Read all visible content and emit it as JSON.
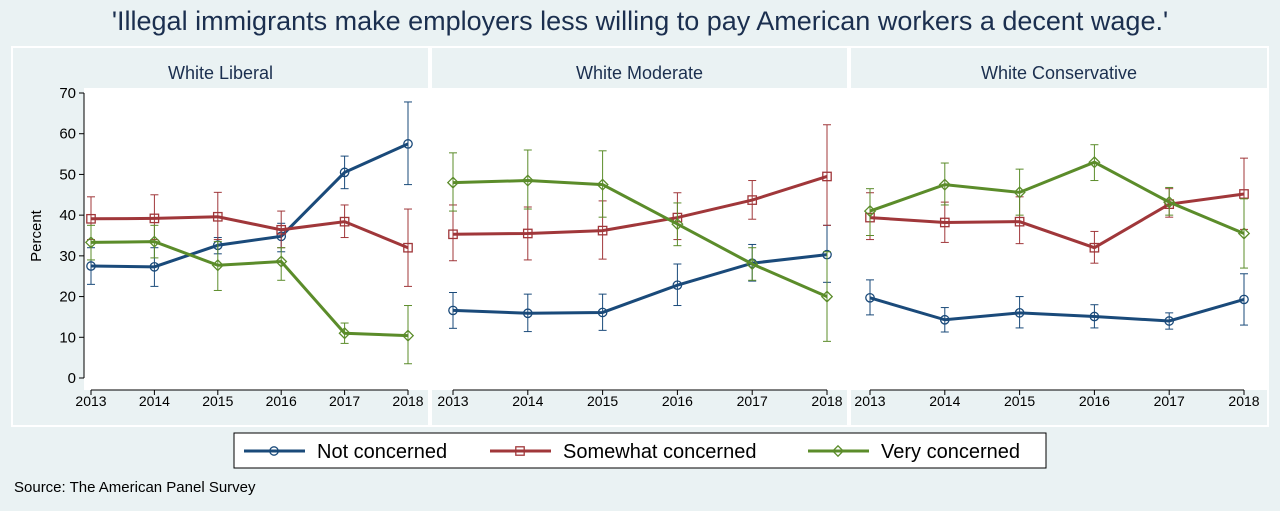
{
  "title": "'Illegal immigrants make employers less willing to pay American workers a decent wage.'",
  "source": "Source: The American Panel Survey",
  "colors": {
    "not_concerned": "#1a4a7a",
    "somewhat_concerned": "#a0373a",
    "very_concerned": "#5b8c2a",
    "background": "#eaf2f3",
    "plot_background": "#ffffff"
  },
  "legend": {
    "position": "bottom",
    "items": [
      {
        "label": "Not concerned",
        "marker": "circle",
        "color": "#1a4a7a"
      },
      {
        "label": "Somewhat concerned",
        "marker": "square",
        "color": "#a0373a"
      },
      {
        "label": "Very concerned",
        "marker": "diamond",
        "color": "#5b8c2a"
      }
    ]
  },
  "chart_data": [
    {
      "type": "line",
      "title": "White Liberal",
      "ylabel": "Percent",
      "xlabel": "",
      "x": [
        2013,
        2014,
        2015,
        2016,
        2017,
        2018
      ],
      "ylim": [
        0,
        70
      ],
      "yticks": [
        0,
        10,
        20,
        30,
        40,
        50,
        60,
        70
      ],
      "grid": false,
      "series": [
        {
          "name": "Not concerned",
          "values": [
            27.5,
            27.3,
            32.6,
            34.8,
            50.5,
            57.5
          ],
          "ci_low": [
            23,
            22.5,
            30.5,
            31,
            46.5,
            47.5
          ],
          "ci_high": [
            32,
            32,
            34.5,
            38,
            54.5,
            67.8
          ]
        },
        {
          "name": "Somewhat concerned",
          "values": [
            39.1,
            39.2,
            39.6,
            36.4,
            38.4,
            32
          ],
          "ci_low": [
            34,
            34,
            34,
            32,
            34.5,
            22.5
          ],
          "ci_high": [
            44.5,
            45,
            45.6,
            41,
            42.5,
            41.5
          ]
        },
        {
          "name": "Very concerned",
          "values": [
            33.3,
            33.5,
            27.7,
            28.6,
            11,
            10.4
          ],
          "ci_low": [
            29,
            29.5,
            21.5,
            24,
            8.5,
            3.5
          ],
          "ci_high": [
            37.5,
            37.5,
            33.5,
            32,
            13.5,
            17.8
          ]
        }
      ]
    },
    {
      "type": "line",
      "title": "White Moderate",
      "ylabel": "",
      "xlabel": "",
      "x": [
        2013,
        2014,
        2015,
        2016,
        2017,
        2018
      ],
      "ylim": [
        0,
        70
      ],
      "yticks": [],
      "grid": false,
      "series": [
        {
          "name": "Not concerned",
          "values": [
            16.6,
            15.9,
            16.1,
            22.8,
            28.2,
            30.3
          ],
          "ci_low": [
            12.2,
            11.4,
            11.7,
            17.8,
            23.8,
            23.5
          ],
          "ci_high": [
            21,
            20.6,
            20.6,
            28,
            32.8,
            37.5
          ]
        },
        {
          "name": "Somewhat concerned",
          "values": [
            35.3,
            35.5,
            36.2,
            39.4,
            43.7,
            49.5
          ],
          "ci_low": [
            28.8,
            29,
            29.2,
            34,
            39,
            37.5
          ],
          "ci_high": [
            42.5,
            42,
            43.5,
            45.5,
            48.5,
            62.2
          ]
        },
        {
          "name": "Very concerned",
          "values": [
            48,
            48.5,
            47.5,
            37.8,
            28,
            20
          ],
          "ci_low": [
            41,
            41.5,
            39.5,
            32.5,
            24,
            9
          ],
          "ci_high": [
            55.3,
            56,
            55.8,
            43,
            32,
            31
          ]
        }
      ]
    },
    {
      "type": "line",
      "title": "White Conservative",
      "ylabel": "",
      "xlabel": "",
      "x": [
        2013,
        2014,
        2015,
        2016,
        2017,
        2018
      ],
      "ylim": [
        0,
        70
      ],
      "yticks": [],
      "grid": false,
      "series": [
        {
          "name": "Not concerned",
          "values": [
            19.7,
            14.3,
            16,
            15.1,
            14,
            19.3
          ],
          "ci_low": [
            15.5,
            11.3,
            12.3,
            12.3,
            12,
            13
          ],
          "ci_high": [
            24.1,
            17.3,
            20,
            18,
            16,
            25.6
          ]
        },
        {
          "name": "Somewhat concerned",
          "values": [
            39.4,
            38.2,
            38.4,
            32,
            42.7,
            45.2
          ],
          "ci_low": [
            34,
            33.3,
            33,
            28.2,
            39.5,
            36.5
          ],
          "ci_high": [
            45.5,
            43.2,
            44.5,
            36,
            46.5,
            54
          ]
        },
        {
          "name": "Very concerned",
          "values": [
            41,
            47.5,
            45.6,
            53,
            43.2,
            35.5
          ],
          "ci_low": [
            35,
            42.5,
            40,
            48.5,
            40,
            27
          ],
          "ci_high": [
            46.5,
            52.8,
            51.3,
            57.3,
            46.8,
            44
          ]
        }
      ]
    }
  ]
}
